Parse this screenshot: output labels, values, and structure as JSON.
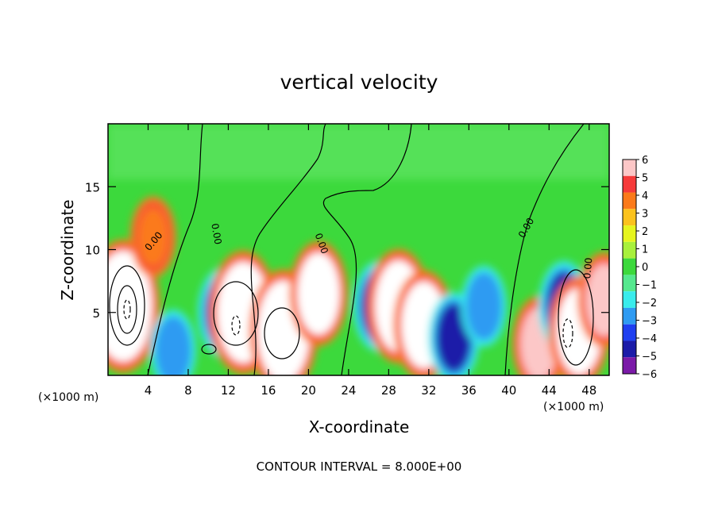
{
  "chart_data": {
    "type": "heatmap",
    "title": "vertical velocity",
    "xlabel": "X-coordinate",
    "ylabel": "Z-coordinate",
    "x_unit": "(×1000 m)",
    "y_unit": "(×1000 m)",
    "xlim": [
      0,
      50
    ],
    "ylim": [
      0,
      20
    ],
    "x_ticks": [
      4,
      8,
      12,
      16,
      20,
      24,
      28,
      32,
      36,
      40,
      44,
      48
    ],
    "y_ticks": [
      5,
      10,
      15
    ],
    "footer": "CONTOUR INTERVAL = 8.000E+00",
    "contour_labels": [
      "0.00",
      "0.00",
      "0.00",
      "0.00",
      "0.00"
    ],
    "colorbar": {
      "labels": [
        "6",
        "5",
        "4",
        "3",
        "2",
        "1",
        "0",
        "-1",
        "-2",
        "-3",
        "-4",
        "-5",
        "-6"
      ],
      "colors": [
        "#fcc7c7",
        "#f63a3a",
        "#fb7a1a",
        "#fbc21d",
        "#e6f51e",
        "#a8f03c",
        "#3cd93c",
        "#55e88e",
        "#39ecec",
        "#2f9bf2",
        "#1f3ff0",
        "#1b1ba8",
        "#7b1aa8"
      ]
    },
    "features": [
      {
        "x": 1.5,
        "z": 5.5,
        "value": 14
      },
      {
        "x": 4.5,
        "z": 11.0,
        "value": 3
      },
      {
        "x": 6.5,
        "z": 2.0,
        "value": -3
      },
      {
        "x": 11.5,
        "z": 5.0,
        "value": -5
      },
      {
        "x": 13.5,
        "z": 5.0,
        "value": 12
      },
      {
        "x": 17.5,
        "z": 3.5,
        "value": 12
      },
      {
        "x": 21.0,
        "z": 6.5,
        "value": 8
      },
      {
        "x": 27.0,
        "z": 5.5,
        "value": -5
      },
      {
        "x": 29.0,
        "z": 5.5,
        "value": 10
      },
      {
        "x": 31.5,
        "z": 4.0,
        "value": 9
      },
      {
        "x": 34.5,
        "z": 3.0,
        "value": -5
      },
      {
        "x": 37.5,
        "z": 5.5,
        "value": -3
      },
      {
        "x": 43.0,
        "z": 2.5,
        "value": 6
      },
      {
        "x": 45.5,
        "z": 5.5,
        "value": -5
      },
      {
        "x": 47.0,
        "z": 3.5,
        "value": 9
      },
      {
        "x": 49.5,
        "z": 6.0,
        "value": 6
      }
    ]
  }
}
